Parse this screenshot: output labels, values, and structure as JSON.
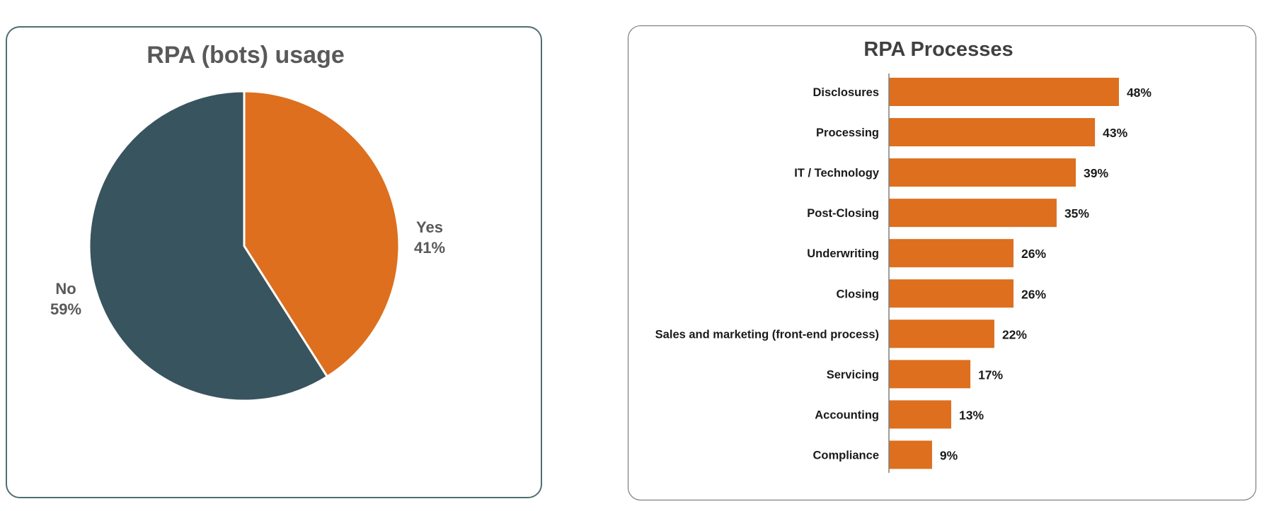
{
  "chart_data": [
    {
      "type": "pie",
      "title": "RPA (bots) usage",
      "slices": [
        {
          "label": "Yes",
          "value": 41,
          "value_label": "41%",
          "color": "#dd6f1e"
        },
        {
          "label": "No",
          "value": 59,
          "value_label": "59%",
          "color": "#38545f"
        }
      ]
    },
    {
      "type": "bar",
      "orientation": "horizontal",
      "title": "RPA Processes",
      "bar_color": "#dd6f1e",
      "categories": [
        "Disclosures",
        "Processing",
        "IT / Technology",
        "Post-Closing",
        "Underwriting",
        "Closing",
        "Sales and marketing (front-end process)",
        "Servicing",
        "Accounting",
        "Compliance"
      ],
      "values": [
        48,
        43,
        39,
        35,
        26,
        26,
        22,
        17,
        13,
        9
      ],
      "value_labels": [
        "48%",
        "43%",
        "39%",
        "35%",
        "26%",
        "26%",
        "22%",
        "17%",
        "13%",
        "9%"
      ]
    }
  ]
}
